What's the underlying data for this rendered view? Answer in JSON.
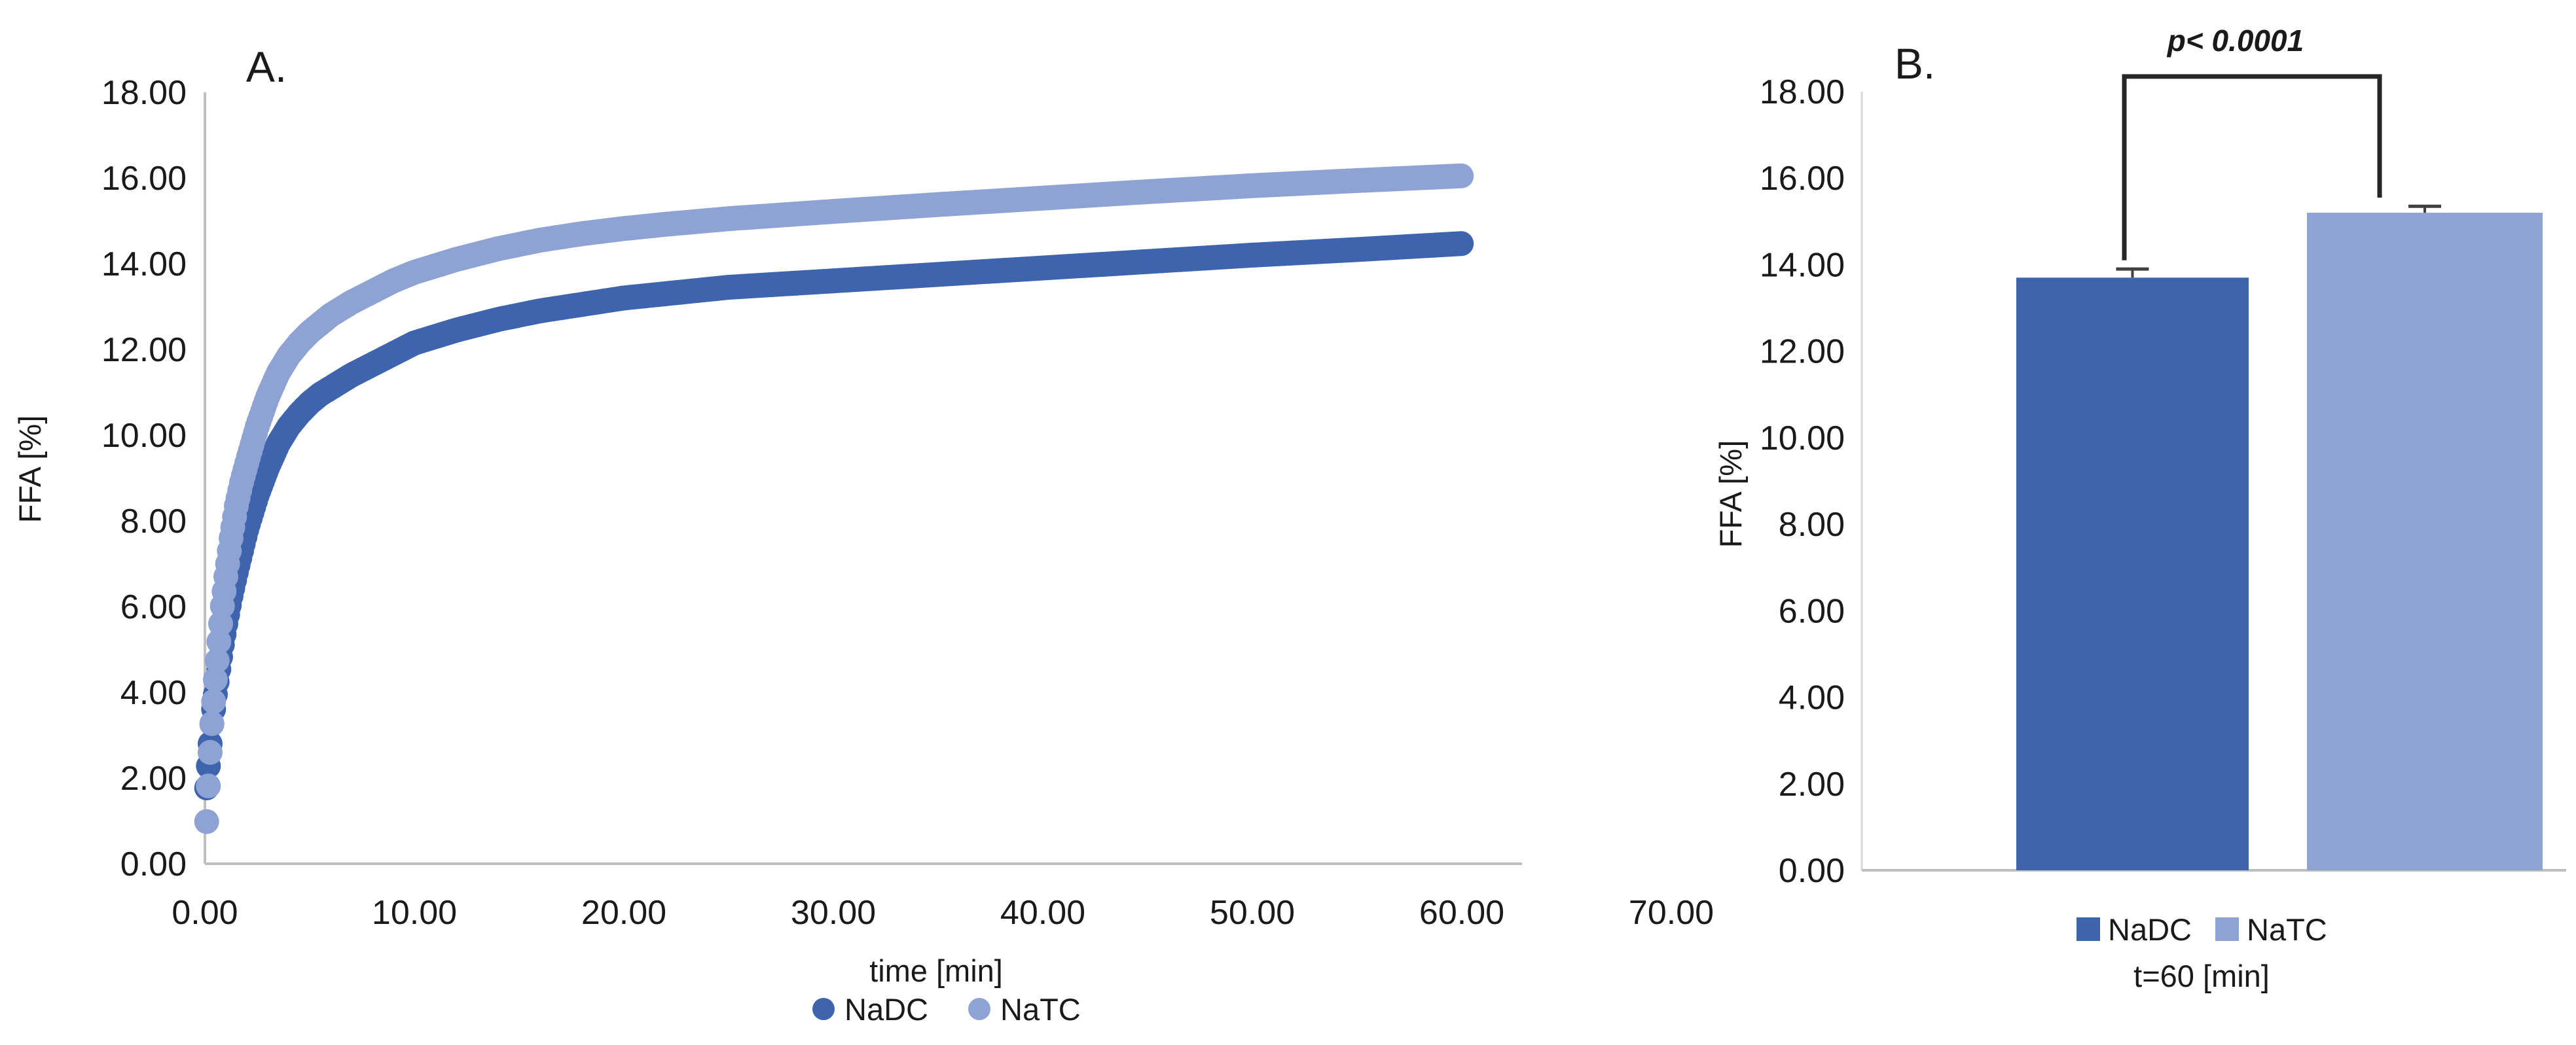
{
  "chart_data": [
    {
      "type": "scatter",
      "panel_label": "A.",
      "xlabel": "time [min]",
      "ylabel": "FFA [%]",
      "xlim": [
        0,
        70
      ],
      "ylim": [
        0,
        18
      ],
      "xticks": [
        "0.00",
        "10.00",
        "20.00",
        "30.00",
        "40.00",
        "50.00",
        "60.00",
        "70.00"
      ],
      "yticks": [
        "0.00",
        "2.00",
        "4.00",
        "6.00",
        "8.00",
        "10.00",
        "12.00",
        "14.00",
        "16.00",
        "18.00"
      ],
      "grid": false,
      "legend_position": "bottom",
      "marker_step_min": 0.0833,
      "series": [
        {
          "name": "NaDC",
          "color": "#3E64AE",
          "points": [
            [
              0.08,
              1.75
            ],
            [
              0.17,
              2.3
            ],
            [
              0.25,
              2.8
            ],
            [
              0.33,
              3.25
            ],
            [
              0.5,
              3.95
            ],
            [
              0.67,
              4.55
            ],
            [
              0.83,
              5.1
            ],
            [
              1,
              5.6
            ],
            [
              1.25,
              6.25
            ],
            [
              1.5,
              6.8
            ],
            [
              1.75,
              7.3
            ],
            [
              2,
              7.8
            ],
            [
              2.5,
              8.6
            ],
            [
              3,
              9.25
            ],
            [
              3.5,
              9.8
            ],
            [
              4,
              10.2
            ],
            [
              4.5,
              10.5
            ],
            [
              5,
              10.75
            ],
            [
              5.5,
              10.95
            ],
            [
              6,
              11.1
            ],
            [
              7,
              11.4
            ],
            [
              8,
              11.65
            ],
            [
              9,
              11.9
            ],
            [
              10,
              12.15
            ],
            [
              11,
              12.3
            ],
            [
              12,
              12.45
            ],
            [
              14,
              12.7
            ],
            [
              16,
              12.9
            ],
            [
              18,
              13.05
            ],
            [
              20,
              13.2
            ],
            [
              22,
              13.3
            ],
            [
              25,
              13.45
            ],
            [
              30,
              13.6
            ],
            [
              35,
              13.75
            ],
            [
              40,
              13.9
            ],
            [
              45,
              14.05
            ],
            [
              50,
              14.2
            ],
            [
              55,
              14.33
            ],
            [
              60,
              14.47
            ]
          ]
        },
        {
          "name": "NaTC",
          "color": "#8FA2D4",
          "points": [
            [
              0.08,
              0.95
            ],
            [
              0.17,
              1.85
            ],
            [
              0.25,
              2.6
            ],
            [
              0.33,
              3.25
            ],
            [
              0.5,
              4.3
            ],
            [
              0.67,
              5.2
            ],
            [
              0.83,
              6.0
            ],
            [
              1,
              6.7
            ],
            [
              1.25,
              7.6
            ],
            [
              1.5,
              8.35
            ],
            [
              1.75,
              8.9
            ],
            [
              2,
              9.35
            ],
            [
              2.5,
              10.2
            ],
            [
              3,
              10.9
            ],
            [
              3.5,
              11.45
            ],
            [
              4,
              11.85
            ],
            [
              4.5,
              12.15
            ],
            [
              5,
              12.4
            ],
            [
              5.5,
              12.6
            ],
            [
              6,
              12.8
            ],
            [
              7,
              13.1
            ],
            [
              8,
              13.35
            ],
            [
              9,
              13.6
            ],
            [
              10,
              13.8
            ],
            [
              11,
              13.95
            ],
            [
              12,
              14.1
            ],
            [
              14,
              14.35
            ],
            [
              16,
              14.55
            ],
            [
              18,
              14.7
            ],
            [
              20,
              14.82
            ],
            [
              22,
              14.92
            ],
            [
              25,
              15.05
            ],
            [
              30,
              15.22
            ],
            [
              35,
              15.38
            ],
            [
              40,
              15.53
            ],
            [
              45,
              15.68
            ],
            [
              50,
              15.82
            ],
            [
              55,
              15.94
            ],
            [
              60,
              16.05
            ]
          ]
        }
      ]
    },
    {
      "type": "bar",
      "panel_label": "B.",
      "xlabel": "t=60 [min]",
      "ylabel": "FFA [%]",
      "ylim": [
        0,
        18
      ],
      "yticks": [
        "0.00",
        "2.00",
        "4.00",
        "6.00",
        "8.00",
        "10.00",
        "12.00",
        "14.00",
        "16.00",
        "18.00"
      ],
      "grid": false,
      "categories": [
        "NaDC",
        "NaTC"
      ],
      "values": [
        13.7,
        15.2
      ],
      "errors": [
        0.2,
        0.15
      ],
      "colors": [
        "#3E64AE",
        "#8FA2D4"
      ],
      "legend_position": "bottom",
      "annotation": {
        "text": "p< 0.0001",
        "bracket": {
          "top": 18.35,
          "left_end": 14.1,
          "right_end": 15.55
        }
      }
    }
  ],
  "style": {
    "axis_color": "#BFBFBF",
    "axis_color_light": "#D9D9D9",
    "error_bar_color": "#404040",
    "bracket_color": "#262626"
  }
}
